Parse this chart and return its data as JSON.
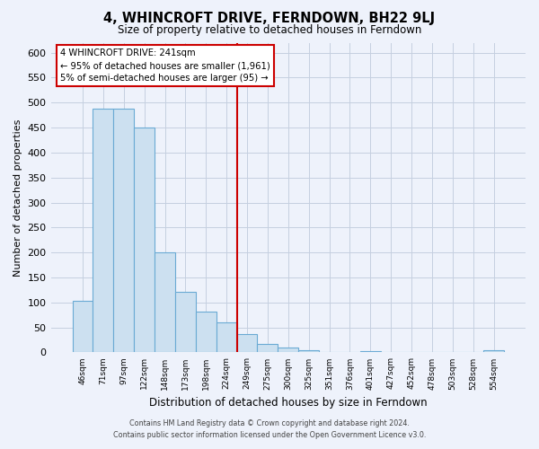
{
  "title": "4, WHINCROFT DRIVE, FERNDOWN, BH22 9LJ",
  "subtitle": "Size of property relative to detached houses in Ferndown",
  "xlabel": "Distribution of detached houses by size in Ferndown",
  "ylabel": "Number of detached properties",
  "bar_labels": [
    "46sqm",
    "71sqm",
    "97sqm",
    "122sqm",
    "148sqm",
    "173sqm",
    "198sqm",
    "224sqm",
    "249sqm",
    "275sqm",
    "300sqm",
    "325sqm",
    "351sqm",
    "376sqm",
    "401sqm",
    "427sqm",
    "452sqm",
    "478sqm",
    "503sqm",
    "528sqm",
    "554sqm"
  ],
  "bar_values": [
    103,
    487,
    487,
    450,
    200,
    122,
    82,
    60,
    37,
    17,
    10,
    5,
    0,
    0,
    3,
    0,
    0,
    0,
    0,
    0,
    5
  ],
  "bar_color": "#cce0f0",
  "bar_edge_color": "#6aaad4",
  "vline_position": 8.5,
  "vline_color": "#cc0000",
  "ylim_min": 0,
  "ylim_max": 620,
  "ytick_step": 50,
  "legend_title": "4 WHINCROFT DRIVE: 241sqm",
  "legend_line1": "← 95% of detached houses are smaller (1,961)",
  "legend_line2": "5% of semi-detached houses are larger (95) →",
  "footer1": "Contains HM Land Registry data © Crown copyright and database right 2024.",
  "footer2": "Contains public sector information licensed under the Open Government Licence v3.0.",
  "bg_color": "#eef2fb",
  "grid_color": "#c5cfe0"
}
